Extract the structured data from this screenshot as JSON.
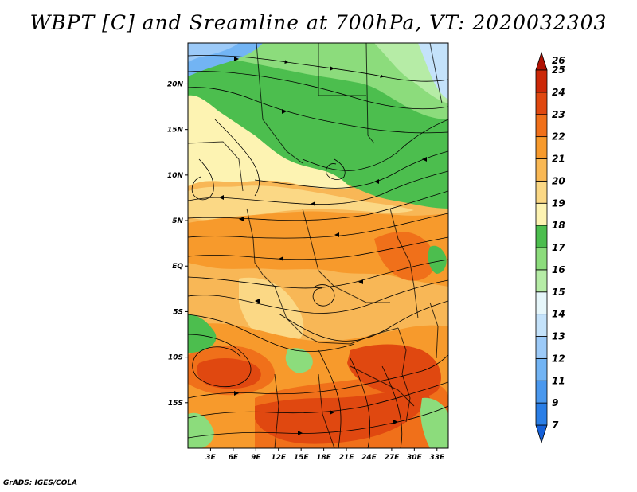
{
  "title": "WBPT [C] and Sreamline at 700hPa, VT: 2020032303",
  "credit": "GrADS: IGES/COLA",
  "map": {
    "variable": "WBPT [C]",
    "overlay": "Sreamline",
    "level": "700hPa",
    "valid_time": "2020032303",
    "lat_labels": [
      "20N",
      "15N",
      "10N",
      "5N",
      "EQ",
      "5S",
      "10S",
      "15S"
    ],
    "lon_labels": [
      "3E",
      "6E",
      "9E",
      "12E",
      "15E",
      "18E",
      "21E",
      "24E",
      "27E",
      "30E",
      "33E"
    ],
    "lat_values": [
      20,
      15,
      10,
      5,
      0,
      -5,
      -10,
      -15
    ],
    "lon_values": [
      3,
      6,
      9,
      12,
      15,
      18,
      21,
      24,
      27,
      30,
      33
    ],
    "lon_range": [
      0,
      34.5
    ],
    "lat_range": [
      -20,
      24.5
    ]
  },
  "colorbar": {
    "levels": [
      "7",
      "9",
      "11",
      "12",
      "13",
      "14",
      "15",
      "16",
      "17",
      "18",
      "19",
      "20",
      "21",
      "22",
      "23",
      "24",
      "25",
      "26"
    ],
    "colors": [
      "#1560d8",
      "#2a7ee6",
      "#4a98ee",
      "#72b4f4",
      "#9ccaf8",
      "#c4e2fa",
      "#e6f6fa",
      "#b6eca6",
      "#8cdc7c",
      "#4cbe4e",
      "#fdf3b2",
      "#fbd885",
      "#f9b854",
      "#f79a2c",
      "#f0701a",
      "#e04810",
      "#cc2808",
      "#b01204"
    ]
  }
}
